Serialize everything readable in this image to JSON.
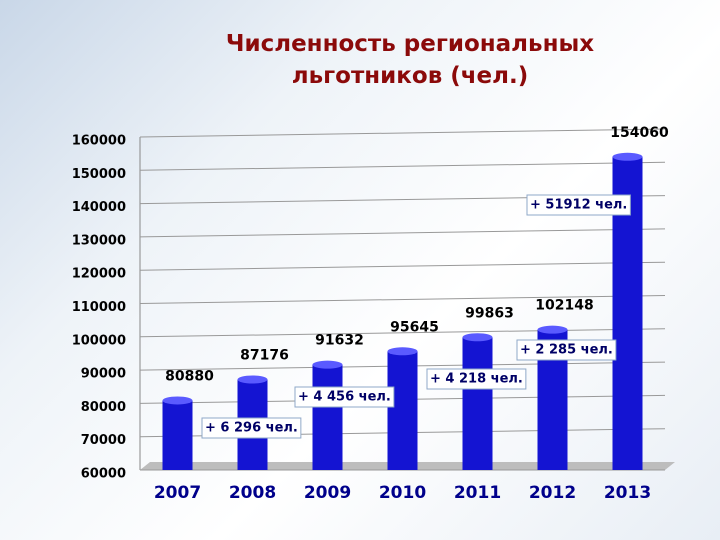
{
  "chart_data": {
    "type": "bar",
    "title": "Численность региональных льготников (чел.)",
    "categories": [
      "2007",
      "2008",
      "2009",
      "2010",
      "2011",
      "2012",
      "2013"
    ],
    "values": [
      80880,
      87176,
      91632,
      95645,
      99863,
      102148,
      154060
    ],
    "color": "#1414d2",
    "ylim": [
      60000,
      160000
    ],
    "yticks": [
      60000,
      70000,
      80000,
      90000,
      100000,
      110000,
      120000,
      130000,
      140000,
      150000,
      160000
    ],
    "grid": true,
    "annotations": [
      "+ 6 296 чел.",
      "+ 4 456 чел.",
      "+ 4 218 чел.",
      "+ 2 285 чел.",
      "+ 51912 чел."
    ]
  }
}
